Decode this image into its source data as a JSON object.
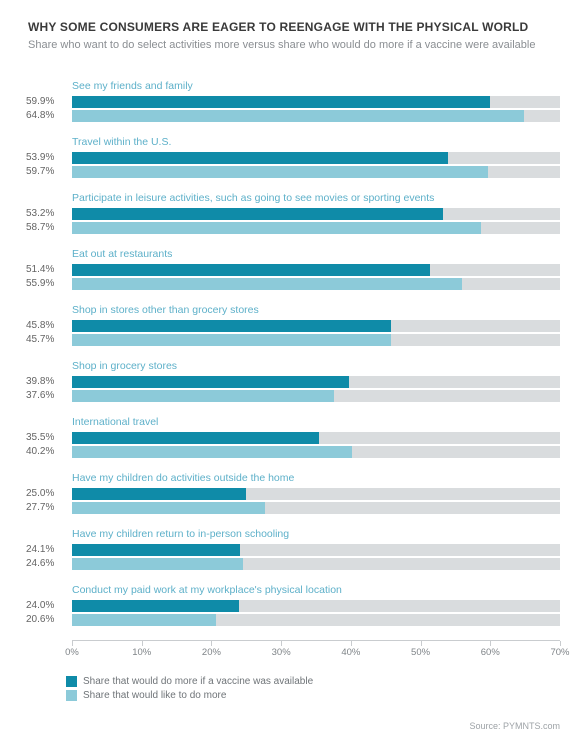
{
  "title": "WHY SOME CONSUMERS ARE EAGER TO REENGAGE WITH THE PHYSICAL WORLD",
  "subtitle": "Share who want to do select activities more versus share who would do more if a vaccine were available",
  "chart": {
    "type": "bar",
    "xmax": 70,
    "xtick_step": 10,
    "track_color": "#d9dcde",
    "background_color": "#ffffff",
    "series_colors": {
      "vaccine": "#0f8ba8",
      "would_like": "#8ccad9"
    },
    "label_color": "#5db0c9",
    "pct_label_color": "#646464",
    "pct_fontsize": 10,
    "label_fontsize": 10.5,
    "groups": [
      {
        "label": "See my friends and family",
        "vaccine": 59.9,
        "would_like": 64.8
      },
      {
        "label": "Travel within the U.S.",
        "vaccine": 53.9,
        "would_like": 59.7
      },
      {
        "label": "Participate in leisure activities, such as going to see movies or sporting events",
        "vaccine": 53.2,
        "would_like": 58.7
      },
      {
        "label": "Eat out at restaurants",
        "vaccine": 51.4,
        "would_like": 55.9
      },
      {
        "label": "Shop in stores other than grocery stores",
        "vaccine": 45.8,
        "would_like": 45.7
      },
      {
        "label": "Shop in grocery stores",
        "vaccine": 39.8,
        "would_like": 37.6
      },
      {
        "label": "International travel",
        "vaccine": 35.5,
        "would_like": 40.2
      },
      {
        "label": "Have my children do activities outside the home",
        "vaccine": 25.0,
        "would_like": 27.7
      },
      {
        "label": "Have my children return to in-person schooling",
        "vaccine": 24.1,
        "would_like": 24.6
      },
      {
        "label": "Conduct my paid work at my workplace's physical location",
        "vaccine": 24.0,
        "would_like": 20.6
      }
    ]
  },
  "legend": {
    "vaccine": "Share that would do more if a vaccine was available",
    "would_like": "Share that would like to do more"
  },
  "source": "Source: PYMNTS.com"
}
